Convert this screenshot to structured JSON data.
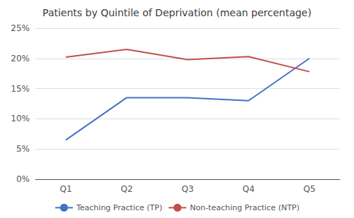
{
  "chart_data": {
    "type": "line",
    "title": "Patients by Quintile of Deprivation (mean percentage)",
    "categories": [
      "Q1",
      "Q2",
      "Q3",
      "Q4",
      "Q5"
    ],
    "series": [
      {
        "name": "Teaching Practice (TP)",
        "color": "#4472C4",
        "values": [
          6.5,
          13.5,
          13.5,
          13.0,
          20.0
        ]
      },
      {
        "name": "Non-teaching Practice (NTP)",
        "color": "#C0504D",
        "values": [
          20.2,
          21.5,
          19.8,
          20.3,
          17.8
        ]
      }
    ],
    "ylim": [
      0,
      25
    ],
    "yticks": [
      {
        "value": 0,
        "label": "0%"
      },
      {
        "value": 5,
        "label": "5%"
      },
      {
        "value": 10,
        "label": "10%"
      },
      {
        "value": 15,
        "label": "15%"
      },
      {
        "value": 20,
        "label": "20%"
      },
      {
        "value": 25,
        "label": "25%"
      }
    ],
    "grid": true,
    "legend": "bottom"
  }
}
